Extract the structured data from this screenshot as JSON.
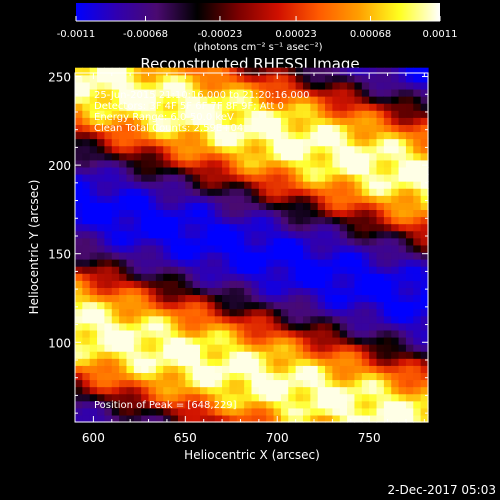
{
  "colorbar": {
    "ticks": [
      "-0.0011",
      "-0.00068",
      "-0.00023",
      "0.00023",
      "0.00068",
      "0.0011"
    ],
    "tick_values": [
      -0.0011,
      -0.00068,
      -0.00023,
      0.00023,
      0.00068,
      0.0011
    ],
    "unit_label": "(photons cm⁻² s⁻¹ asec⁻²)",
    "gradient": [
      "#0000ff",
      "#3000b0",
      "#4a0a70",
      "#000000",
      "#7a0000",
      "#d01000",
      "#ff5a00",
      "#ff9f00",
      "#ffff20",
      "#ffffff"
    ]
  },
  "chart_data": {
    "type": "heatmap",
    "title": "Reconstructed RHESSI Image",
    "xlabel": "Heliocentric X (arcsec)",
    "ylabel": "Heliocentric Y (arcsec)",
    "xlim": [
      590,
      782
    ],
    "ylim": [
      55,
      252
    ],
    "xticks": [
      "600",
      "650",
      "700",
      "750"
    ],
    "xtick_values": [
      600,
      650,
      700,
      750
    ],
    "yticks": [
      "100",
      "150",
      "200",
      "250"
    ],
    "ytick_values": [
      100,
      150,
      200,
      250
    ],
    "info": [
      "25-Jun-2015 21:10:16.000 to 21:20:16.000",
      "Detectors: 3F 4F 5F 6F 7F 8F 9F; Att 0",
      "Energy Range: 6.0-50.0 keV",
      "Clean    Total Counts: 2.59E+04"
    ],
    "peak_label": "Position of Peak = [648,229]",
    "peak": [
      648,
      229
    ],
    "stripes": {
      "slope": 0.3,
      "bright_centers_at_x590": [
        250,
        112
      ],
      "dark_centers_at_x590": [
        180,
        40
      ],
      "period": 140
    }
  },
  "footer_date": "2-Dec-2017 05:03"
}
